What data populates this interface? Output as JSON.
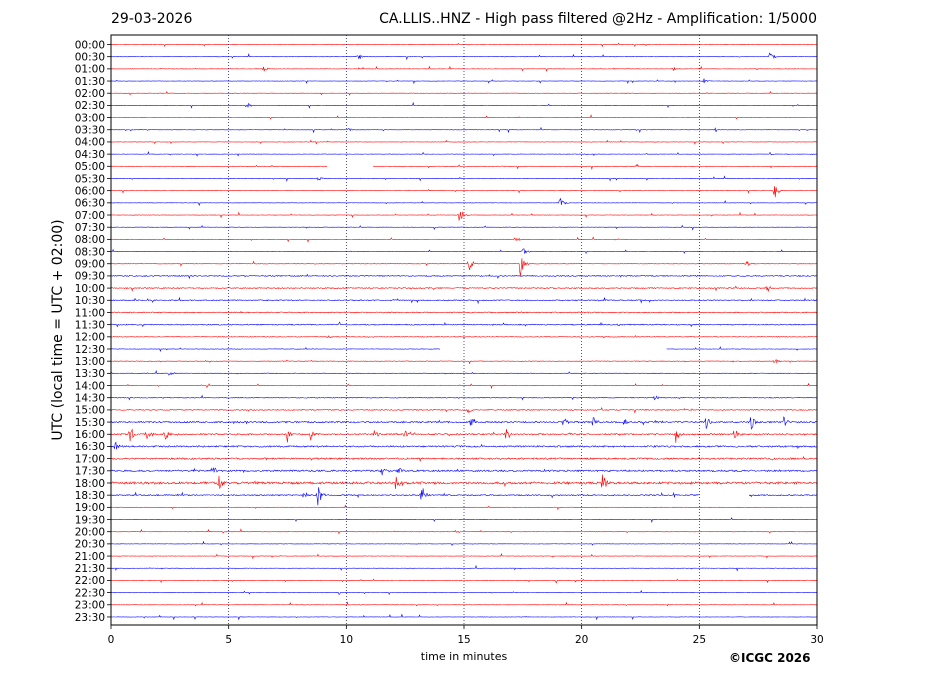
{
  "header": {
    "date": "29-03-2026",
    "title": "CA.LLIS..HNZ - High pass filtered @2Hz - Amplification: 1/5000"
  },
  "footer": {
    "copyright": "©ICGC 2026"
  },
  "chart_data": {
    "type": "line",
    "title": "CA.LLIS..HNZ - High pass filtered @2Hz - Amplification: 1/5000",
    "xlabel": "time in minutes",
    "ylabel": "UTC (local time = UTC + 02:00)",
    "xlim": [
      0,
      30
    ],
    "xticks": [
      0,
      5,
      10,
      15,
      20,
      25,
      30
    ],
    "grid": "vertical dotted lines at x = 5, 10, 15, 20, 25",
    "colors": {
      "even_rows": "#ff0000",
      "odd_rows": "#0000ff"
    },
    "rows": [
      {
        "label": "00:00",
        "noise": 0.3,
        "events": []
      },
      {
        "label": "00:30",
        "noise": 0.3,
        "events": [
          [
            10.5,
            5
          ],
          [
            28.0,
            6
          ]
        ]
      },
      {
        "label": "01:00",
        "noise": 0.3,
        "events": [
          [
            6.5,
            3
          ],
          [
            23.9,
            2
          ]
        ]
      },
      {
        "label": "01:30",
        "noise": 0.3,
        "events": [
          [
            25.2,
            3
          ]
        ]
      },
      {
        "label": "02:00",
        "noise": 0.3,
        "events": []
      },
      {
        "label": "02:30",
        "noise": 0.3,
        "events": [
          [
            5.8,
            3
          ]
        ]
      },
      {
        "label": "03:00",
        "noise": 0.3,
        "events": []
      },
      {
        "label": "03:30",
        "noise": 0.3,
        "events": [
          [
            10.1,
            2
          ]
        ]
      },
      {
        "label": "04:00",
        "noise": 0.3,
        "events": []
      },
      {
        "label": "04:30",
        "noise": 0.3,
        "events": [
          [
            28.0,
            2
          ]
        ]
      },
      {
        "label": "05:00",
        "noise": 0.3,
        "events": [],
        "gaps": [
          [
            9.2,
            11.1
          ]
        ]
      },
      {
        "label": "05:30",
        "noise": 0.4,
        "events": [
          [
            8.8,
            3
          ]
        ]
      },
      {
        "label": "06:00",
        "noise": 0.3,
        "events": [
          [
            28.2,
            10
          ]
        ]
      },
      {
        "label": "06:30",
        "noise": 0.3,
        "events": [
          [
            19.1,
            8
          ]
        ]
      },
      {
        "label": "07:00",
        "noise": 0.3,
        "events": [
          [
            14.8,
            8
          ]
        ]
      },
      {
        "label": "07:30",
        "noise": 0.3,
        "events": []
      },
      {
        "label": "08:00",
        "noise": 0.3,
        "events": [
          [
            17.2,
            4
          ]
        ]
      },
      {
        "label": "08:30",
        "noise": 0.3,
        "events": [
          [
            17.5,
            6
          ]
        ]
      },
      {
        "label": "09:00",
        "noise": 0.4,
        "events": [
          [
            15.2,
            9
          ],
          [
            17.4,
            14
          ],
          [
            27.0,
            4
          ]
        ]
      },
      {
        "label": "09:30",
        "noise": 1.0,
        "events": []
      },
      {
        "label": "10:00",
        "noise": 1.0,
        "events": [
          [
            27.9,
            4
          ]
        ]
      },
      {
        "label": "10:30",
        "noise": 1.0,
        "events": []
      },
      {
        "label": "11:00",
        "noise": 1.0,
        "events": []
      },
      {
        "label": "11:30",
        "noise": 1.0,
        "events": [
          [
            21.5,
            2
          ]
        ]
      },
      {
        "label": "12:00",
        "noise": 0.6,
        "events": [
          [
            9.2,
            3
          ]
        ]
      },
      {
        "label": "12:30",
        "noise": 0.4,
        "events": [],
        "gaps": [
          [
            14.0,
            23.6
          ]
        ]
      },
      {
        "label": "13:00",
        "noise": 0.5,
        "events": [
          [
            28.2,
            4
          ]
        ]
      },
      {
        "label": "13:30",
        "noise": 0.6,
        "events": [
          [
            2.5,
            4
          ]
        ]
      },
      {
        "label": "14:00",
        "noise": 0.5,
        "events": []
      },
      {
        "label": "14:30",
        "noise": 0.7,
        "events": [
          [
            23.1,
            3
          ]
        ]
      },
      {
        "label": "15:00",
        "noise": 0.9,
        "events": [
          [
            15.2,
            5
          ]
        ]
      },
      {
        "label": "15:30",
        "noise": 1.5,
        "events": [
          [
            15.3,
            8
          ],
          [
            19.2,
            7
          ],
          [
            20.5,
            6
          ],
          [
            21.8,
            5
          ],
          [
            25.3,
            9
          ],
          [
            27.2,
            10
          ],
          [
            28.6,
            7
          ]
        ]
      },
      {
        "label": "16:00",
        "noise": 1.4,
        "events": [
          [
            0.8,
            10
          ],
          [
            1.5,
            8
          ],
          [
            2.3,
            7
          ],
          [
            7.5,
            8
          ],
          [
            8.5,
            7
          ],
          [
            11.2,
            6
          ],
          [
            12.5,
            5
          ],
          [
            16.8,
            7
          ],
          [
            24.0,
            9
          ],
          [
            26.5,
            7
          ]
        ]
      },
      {
        "label": "16:30",
        "noise": 1.5,
        "events": [
          [
            0.2,
            6
          ]
        ]
      },
      {
        "label": "17:00",
        "noise": 1.5,
        "events": []
      },
      {
        "label": "17:30",
        "noise": 1.6,
        "events": [
          [
            4.3,
            8
          ],
          [
            11.5,
            7
          ],
          [
            12.2,
            6
          ]
        ]
      },
      {
        "label": "18:00",
        "noise": 2.2,
        "events": [
          [
            4.6,
            9
          ],
          [
            12.1,
            8
          ],
          [
            20.9,
            13
          ]
        ]
      },
      {
        "label": "18:30",
        "noise": 1.2,
        "events": [
          [
            8.2,
            8
          ],
          [
            8.8,
            16
          ],
          [
            13.2,
            11
          ]
        ],
        "gaps": [
          [
            25.0,
            27.1
          ]
        ]
      },
      {
        "label": "19:00",
        "noise": 0.3,
        "events": []
      },
      {
        "label": "19:30",
        "noise": 0.3,
        "events": []
      },
      {
        "label": "20:00",
        "noise": 0.3,
        "events": []
      },
      {
        "label": "20:30",
        "noise": 0.3,
        "events": []
      },
      {
        "label": "21:00",
        "noise": 0.3,
        "events": []
      },
      {
        "label": "21:30",
        "noise": 0.3,
        "events": []
      },
      {
        "label": "22:00",
        "noise": 0.3,
        "events": []
      },
      {
        "label": "22:30",
        "noise": 0.3,
        "events": []
      },
      {
        "label": "23:00",
        "noise": 0.3,
        "events": []
      },
      {
        "label": "23:30",
        "noise": 0.3,
        "events": []
      }
    ]
  }
}
